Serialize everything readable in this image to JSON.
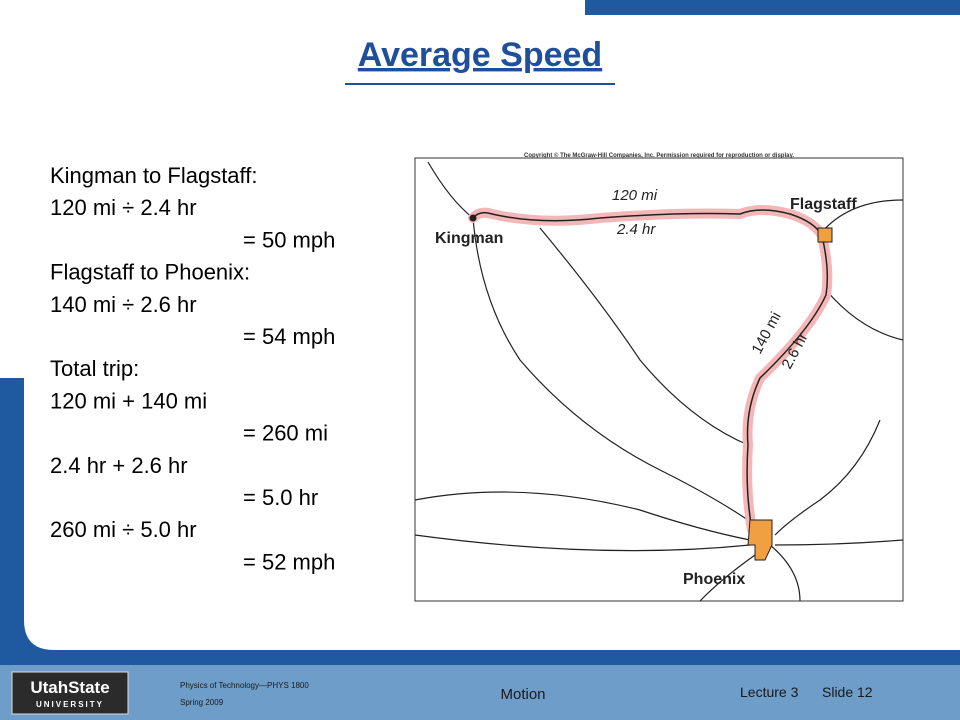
{
  "title": "Average Speed",
  "lines": [
    {
      "text": "Kingman to Flagstaff:"
    },
    {
      "text": "120 mi ÷ 2.4 hr"
    },
    {
      "text": "= 50 mph"
    },
    {
      "text": "Flagstaff to Phoenix:"
    },
    {
      "text": "140 mi ÷ 2.6 hr"
    },
    {
      "text": "= 54 mph"
    },
    {
      "text": "Total trip:"
    },
    {
      "text": "120 mi + 140 mi"
    },
    {
      "text": "= 260 mi"
    },
    {
      "text": "2.4 hr + 2.6 hr"
    },
    {
      "text": "= 5.0 hr"
    },
    {
      "text": "260 mi ÷ 5.0 hr",
      "color": "#e41b17"
    },
    {
      "text": "= 52 mph",
      "color": "#e41b17"
    }
  ],
  "map": {
    "copyright": "Copyright © The McGraw-Hill Companies, Inc. Permission required for reproduction or display.",
    "cities": [
      "Kingman",
      "Flagstaff",
      "Phoenix"
    ],
    "leg1": {
      "distance": "120 mi",
      "time": "2.4 hr"
    },
    "leg2": {
      "distance": "140 mi",
      "time": "2.6 hr"
    }
  },
  "footer": {
    "logo": "UtahState",
    "logo_sub": "UNIVERSITY",
    "course": "Physics of Technology—PHYS 1800",
    "term": "Spring 2009",
    "topic": "Motion",
    "lecture": "Lecture 3",
    "slide": "Slide 12"
  }
}
